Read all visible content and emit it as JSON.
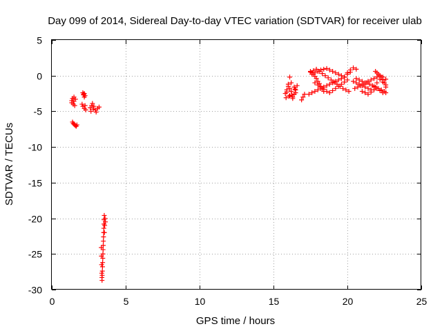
{
  "chart_data": {
    "type": "scatter",
    "title": "Day 099 of 2014, Sidereal Day-to-day VTEC variation (SDTVAR) for receiver ulab",
    "xlabel": "GPS time / hours",
    "ylabel": "SDTVAR / TECUs",
    "xlim": [
      0,
      25
    ],
    "ylim": [
      -30,
      5
    ],
    "xticks": [
      0,
      5,
      10,
      15,
      20,
      25
    ],
    "yticks": [
      5,
      0,
      -5,
      -10,
      -15,
      -20,
      -25,
      -30
    ],
    "xtick_labels": [
      "0",
      "5",
      "10",
      "15",
      "20",
      "25"
    ],
    "ytick_labels": [
      "5",
      "0",
      "-5",
      "-10",
      "-15",
      "-20",
      "-25",
      "-30"
    ],
    "grid": true,
    "marker": "plus",
    "color": "#ff0000",
    "series": [
      {
        "name": "SDTVAR",
        "x": [
          1.35,
          1.4,
          1.5,
          1.6,
          1.45,
          1.55,
          1.35,
          1.5,
          1.4,
          1.45,
          1.5,
          1.55,
          1.6,
          1.65,
          1.7,
          2.1,
          2.15,
          2.2,
          2.25,
          2.2,
          2.15,
          2.05,
          2.1,
          2.2,
          2.3,
          2.25,
          2.6,
          2.7,
          2.75,
          2.85,
          2.95,
          3.0,
          3.1,
          3.2,
          2.65,
          2.8,
          3.55,
          3.54,
          3.53,
          3.52,
          3.51,
          3.5,
          3.49,
          3.48,
          3.47,
          3.46,
          3.45,
          3.44,
          3.43,
          3.42,
          3.41,
          3.4,
          3.39,
          3.38,
          3.37,
          3.36,
          3.35,
          3.6,
          3.62,
          3.58,
          3.56,
          15.8,
          15.9,
          16.0,
          16.1,
          16.2,
          16.3,
          16.4,
          16.5,
          16.6,
          15.85,
          16.05,
          16.25,
          16.45,
          16.0,
          16.2,
          16.4,
          15.9,
          16.1,
          16.3,
          16.5,
          16.1,
          16.9,
          17.0,
          17.1,
          17.5,
          17.6,
          17.7,
          17.8,
          17.9,
          18.0,
          18.1,
          18.2,
          18.3,
          18.4,
          17.4,
          17.6,
          17.8,
          18.0,
          18.2,
          18.4,
          18.6,
          18.8,
          19.0,
          19.2,
          19.4,
          19.6,
          19.8,
          20.0,
          20.2,
          17.5,
          17.7,
          17.9,
          18.1,
          18.3,
          18.5,
          18.7,
          18.9,
          19.1,
          19.3,
          19.5,
          19.7,
          19.9,
          20.1,
          17.8,
          18.0,
          18.2,
          18.4,
          18.6,
          18.8,
          19.0,
          19.2,
          19.4,
          19.6,
          19.8,
          20.0,
          17.6,
          17.8,
          18.0,
          18.2,
          18.4,
          18.6,
          18.8,
          19.0,
          19.2,
          19.4,
          19.6,
          19.8,
          20.0,
          20.2,
          20.4,
          20.6,
          20.5,
          20.7,
          20.9,
          21.1,
          21.3,
          21.5,
          21.7,
          21.9,
          22.1,
          22.3,
          22.5,
          22.6,
          20.6,
          20.8,
          21.0,
          21.2,
          21.4,
          21.6,
          21.8,
          22.0,
          22.2,
          22.4,
          22.6,
          21.0,
          21.2,
          21.4,
          21.6,
          21.8,
          22.0,
          22.2,
          22.4,
          20.4,
          20.6,
          20.8,
          21.0,
          21.2,
          21.4,
          21.6,
          21.8,
          22.0,
          22.2,
          22.4,
          22.6,
          21.9,
          22.0,
          22.1,
          22.2,
          22.3,
          22.4,
          22.5,
          22.6
        ],
        "y": [
          -3.5,
          -3.2,
          -3.0,
          -3.3,
          -4.0,
          -4.2,
          -3.8,
          -3.6,
          -6.5,
          -6.7,
          -6.8,
          -6.9,
          -7.0,
          -7.1,
          -6.9,
          -2.4,
          -2.6,
          -2.5,
          -2.8,
          -3.0,
          -2.7,
          -4.0,
          -4.3,
          -4.6,
          -4.8,
          -4.2,
          -4.5,
          -4.2,
          -3.9,
          -4.3,
          -4.8,
          -5.1,
          -4.6,
          -4.4,
          -5.0,
          -4.7,
          -19.6,
          -20.2,
          -20.8,
          -21.4,
          -22.0,
          -22.6,
          -23.2,
          -23.8,
          -24.4,
          -25.0,
          -25.6,
          -26.2,
          -26.8,
          -27.4,
          -28.0,
          -28.7,
          -28.3,
          -27.7,
          -26.5,
          -25.3,
          -24.1,
          -20.0,
          -20.5,
          -21.0,
          -22.0,
          -2.5,
          -2.0,
          -1.5,
          -1.8,
          -2.2,
          -3.0,
          -2.6,
          -2.0,
          -1.4,
          -3.1,
          -2.9,
          -2.7,
          -1.9,
          -1.2,
          -1.0,
          -1.6,
          -2.3,
          -2.8,
          -3.2,
          -2.4,
          -0.2,
          -3.4,
          -3.0,
          -2.6,
          0.6,
          0.4,
          0.2,
          -0.1,
          -0.4,
          -0.8,
          -1.1,
          -1.5,
          -1.8,
          -2.2,
          -2.6,
          -2.4,
          -2.2,
          -2.0,
          -1.8,
          -1.6,
          -1.4,
          -1.2,
          -1.0,
          -0.8,
          -0.6,
          -0.4,
          -0.2,
          0.2,
          0.5,
          0.5,
          0.7,
          0.9,
          0.6,
          0.3,
          0.0,
          -0.3,
          -0.6,
          -0.9,
          -1.2,
          -1.5,
          -1.8,
          -2.0,
          -2.2,
          -1.0,
          -1.3,
          -1.6,
          -1.9,
          -2.2,
          -2.4,
          -2.1,
          -1.8,
          -1.5,
          -1.2,
          -0.9,
          -0.6,
          0.2,
          0.4,
          0.6,
          0.8,
          0.9,
          1.0,
          0.8,
          0.6,
          0.4,
          0.2,
          0.0,
          -0.2,
          0.4,
          0.8,
          1.1,
          0.9,
          -1.8,
          -1.6,
          -1.4,
          -1.2,
          -1.0,
          -1.2,
          -1.4,
          -1.6,
          -1.8,
          -2.0,
          -2.2,
          -2.4,
          -0.4,
          -0.6,
          -0.8,
          -1.0,
          -0.8,
          -0.6,
          -0.4,
          -0.2,
          0.0,
          -0.2,
          -0.5,
          -2.2,
          -2.4,
          -2.6,
          -2.3,
          -2.0,
          -1.8,
          -2.1,
          -2.4,
          -0.8,
          -1.0,
          -1.2,
          -1.4,
          -1.6,
          -1.8,
          -2.0,
          -1.5,
          -1.0,
          -0.5,
          -0.9,
          -1.3,
          0.6,
          0.4,
          0.2,
          0.0,
          -0.2,
          -0.6,
          -1.0,
          -1.6
        ]
      }
    ]
  }
}
